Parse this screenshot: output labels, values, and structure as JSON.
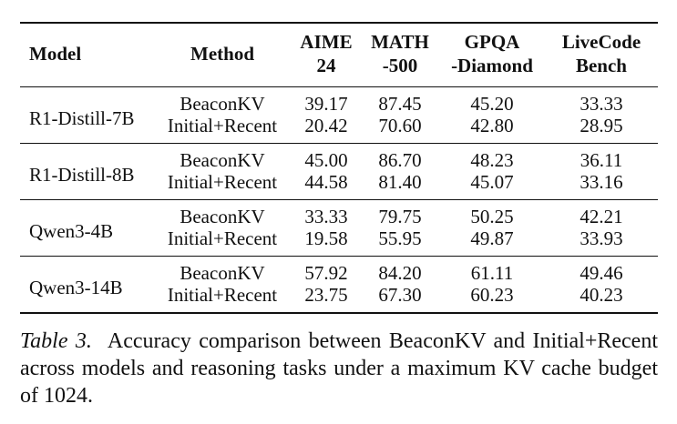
{
  "table": {
    "headers": {
      "model": "Model",
      "method": "Method",
      "aime": [
        "AIME",
        "24"
      ],
      "math": [
        "MATH",
        "-500"
      ],
      "gpqa": [
        "GPQA",
        "-Diamond"
      ],
      "livecode": [
        "LiveCode",
        "Bench"
      ]
    },
    "groups": [
      {
        "model": "R1-Distill-7B",
        "rows": [
          {
            "method": "BeaconKV",
            "aime": "39.17",
            "math": "87.45",
            "gpqa": "45.20",
            "livecode": "33.33"
          },
          {
            "method": "Initial+Recent",
            "aime": "20.42",
            "math": "70.60",
            "gpqa": "42.80",
            "livecode": "28.95"
          }
        ]
      },
      {
        "model": "R1-Distill-8B",
        "rows": [
          {
            "method": "BeaconKV",
            "aime": "45.00",
            "math": "86.70",
            "gpqa": "48.23",
            "livecode": "36.11"
          },
          {
            "method": "Initial+Recent",
            "aime": "44.58",
            "math": "81.40",
            "gpqa": "45.07",
            "livecode": "33.16"
          }
        ]
      },
      {
        "model": "Qwen3-4B",
        "rows": [
          {
            "method": "BeaconKV",
            "aime": "33.33",
            "math": "79.75",
            "gpqa": "50.25",
            "livecode": "42.21"
          },
          {
            "method": "Initial+Recent",
            "aime": "19.58",
            "math": "55.95",
            "gpqa": "49.87",
            "livecode": "33.93"
          }
        ]
      },
      {
        "model": "Qwen3-14B",
        "rows": [
          {
            "method": "BeaconKV",
            "aime": "57.92",
            "math": "84.20",
            "gpqa": "61.11",
            "livecode": "49.46"
          },
          {
            "method": "Initial+Recent",
            "aime": "23.75",
            "math": "67.30",
            "gpqa": "60.23",
            "livecode": "40.23"
          }
        ]
      }
    ]
  },
  "caption": {
    "label": "Table 3.",
    "text": "Accuracy comparison between BeaconKV and Initial+Recent across models and reasoning tasks under a maximum KV cache budget of 1024."
  }
}
